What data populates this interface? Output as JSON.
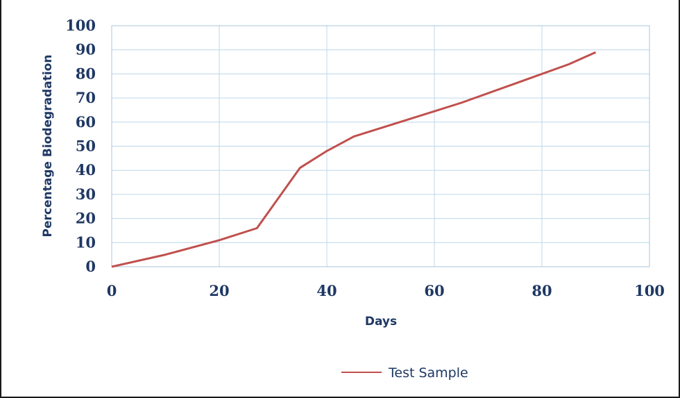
{
  "chart_data": {
    "type": "line",
    "title": "",
    "xlabel": "Days",
    "ylabel": "Percentage Biodegradation",
    "xlim": [
      0,
      100
    ],
    "ylim": [
      0,
      100
    ],
    "x_ticks": [
      0,
      20,
      40,
      60,
      80,
      100
    ],
    "y_ticks": [
      0,
      10,
      20,
      30,
      40,
      50,
      60,
      70,
      80,
      90,
      100
    ],
    "grid": true,
    "legend_position": "bottom",
    "series": [
      {
        "name": "Test Sample",
        "color": "#c0504d",
        "x": [
          0,
          10,
          20,
          27,
          35,
          40,
          45,
          55,
          65,
          75,
          85,
          90
        ],
        "y": [
          0,
          5,
          11,
          16,
          41,
          48,
          54,
          61,
          68,
          76,
          84,
          89
        ]
      }
    ]
  }
}
